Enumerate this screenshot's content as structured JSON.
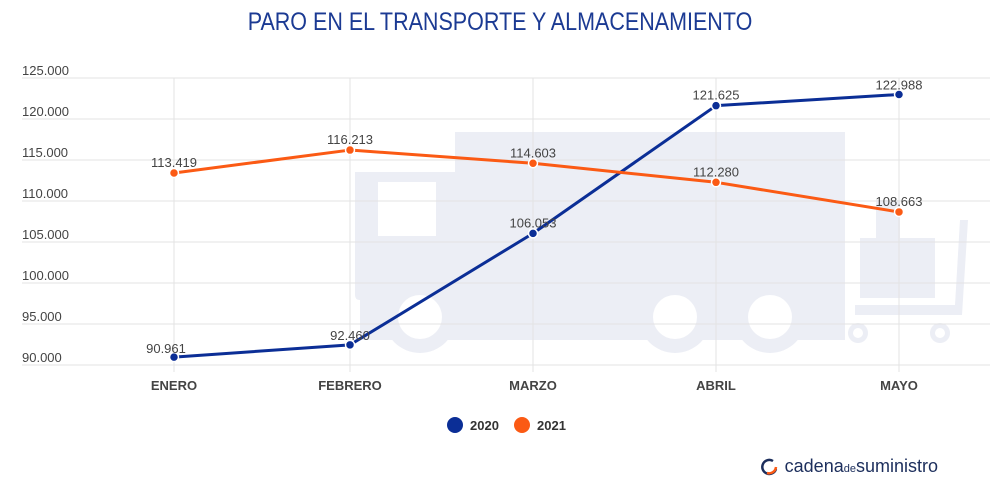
{
  "chart_data": {
    "type": "line",
    "title": "PARO EN EL TRANSPORTE Y ALMACENAMIENTO",
    "categories": [
      "ENERO",
      "FEBRERO",
      "MARZO",
      "ABRIL",
      "MAYO"
    ],
    "series": [
      {
        "name": "2020",
        "color": "#0b2e96",
        "values": [
          90961,
          92460,
          106053,
          121625,
          122988
        ],
        "labels": [
          "90.961",
          "92.460",
          "106.053",
          "121.625",
          "122.988"
        ]
      },
      {
        "name": "2021",
        "color": "#fb5a14",
        "values": [
          113419,
          116213,
          114603,
          112280,
          108663
        ],
        "labels": [
          "113.419",
          "116.213",
          "114.603",
          "112.280",
          "108.663"
        ]
      }
    ],
    "ylim": [
      90000,
      125000
    ],
    "yticks": [
      90000,
      95000,
      100000,
      105000,
      110000,
      115000,
      120000,
      125000
    ],
    "ytick_labels": [
      "90.000",
      "95.000",
      "100.000",
      "105.000",
      "110.000",
      "115.000",
      "120.000",
      "125.000"
    ],
    "grid": true,
    "legend_position": "bottom-center"
  },
  "brand": {
    "name_part1": "cadena",
    "name_mid": "de",
    "name_part2": "suministro",
    "icon": "cadena-logo-icon"
  }
}
